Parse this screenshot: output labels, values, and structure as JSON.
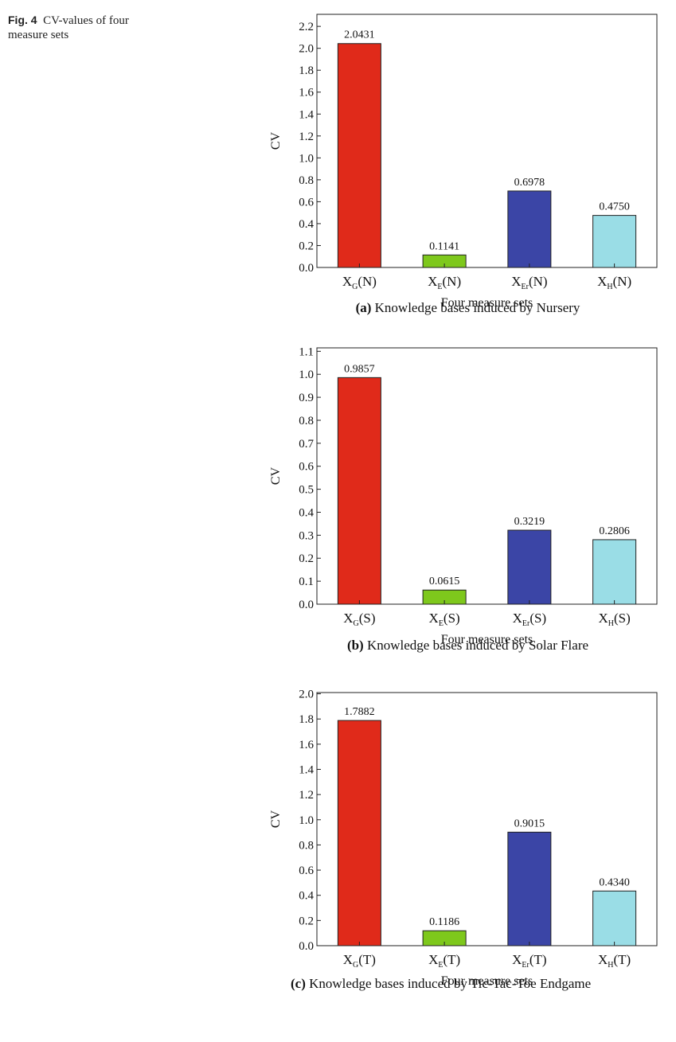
{
  "figure_caption": {
    "label": "Fig. 4",
    "text": "CV-values of four measure sets"
  },
  "chart_data": [
    {
      "type": "bar",
      "caption": {
        "label": "(a)",
        "text": "Knowledge bases induced by Nursery"
      },
      "xlabel": "Four measure sets",
      "ylabel": "CV",
      "categories": [
        [
          "X",
          "G",
          "(N)"
        ],
        [
          "X",
          "E",
          "(N)"
        ],
        [
          "X",
          "Er",
          "(N)"
        ],
        [
          "X",
          "H",
          "(N)"
        ]
      ],
      "values": [
        2.0431,
        0.1141,
        0.6978,
        0.475
      ],
      "value_labels": [
        "2.0431",
        "0.1141",
        "0.6978",
        "0.4750"
      ],
      "colors": [
        "#e02a1a",
        "#7ec81c",
        "#3b45a6",
        "#9adde6"
      ],
      "ylim": [
        0,
        2.31
      ],
      "yticks": [
        {
          "value": 0,
          "label": "0.0"
        },
        0.2,
        0.4,
        0.6,
        0.8,
        {
          "value": 1,
          "label": "1.0"
        },
        1.2,
        1.4,
        1.6,
        1.8,
        {
          "value": 2,
          "label": "2.0"
        },
        2.2
      ]
    },
    {
      "type": "bar",
      "caption": {
        "label": "(b)",
        "text": "Knowledge bases induced by Solar Flare"
      },
      "xlabel": "Four measure sets",
      "ylabel": "CV",
      "categories": [
        [
          "X",
          "G",
          "(S)"
        ],
        [
          "X",
          "E",
          "(S)"
        ],
        [
          "X",
          "Er",
          "(S)"
        ],
        [
          "X",
          "H",
          "(S)"
        ]
      ],
      "values": [
        0.9857,
        0.0615,
        0.3219,
        0.2806
      ],
      "value_labels": [
        "0.9857",
        "0.0615",
        "0.3219",
        "0.2806"
      ],
      "colors": [
        "#e02a1a",
        "#7ec81c",
        "#3b45a6",
        "#9adde6"
      ],
      "ylim": [
        0,
        1.115
      ],
      "yticks": [
        {
          "value": 0,
          "label": "0.0"
        },
        0.1,
        0.2,
        0.3,
        0.4,
        0.5,
        0.6,
        0.7,
        0.8,
        0.9,
        {
          "value": 1,
          "label": "1.0"
        },
        1.1
      ]
    },
    {
      "type": "bar",
      "caption": {
        "label": "(c)",
        "text": "Knowledge bases induced by Tic-Tac-Toe Endgame"
      },
      "xlabel": "Four measure sets",
      "ylabel": "CV",
      "categories": [
        [
          "X",
          "G",
          "(T)"
        ],
        [
          "X",
          "E",
          "(T)"
        ],
        [
          "X",
          "Er",
          "(T)"
        ],
        [
          "X",
          "H",
          "(T)"
        ]
      ],
      "values": [
        1.7882,
        0.1186,
        0.9015,
        0.434
      ],
      "value_labels": [
        "1.7882",
        "0.1186",
        "0.9015",
        "0.4340"
      ],
      "colors": [
        "#e02a1a",
        "#7ec81c",
        "#3b45a6",
        "#9adde6"
      ],
      "ylim": [
        0,
        2.01
      ],
      "yticks": [
        {
          "value": 0,
          "label": "0.0"
        },
        0.2,
        0.4,
        0.6,
        0.8,
        {
          "value": 1,
          "label": "1.0"
        },
        1.2,
        1.4,
        1.6,
        1.8,
        {
          "value": 2,
          "label": "2.0"
        }
      ]
    }
  ]
}
